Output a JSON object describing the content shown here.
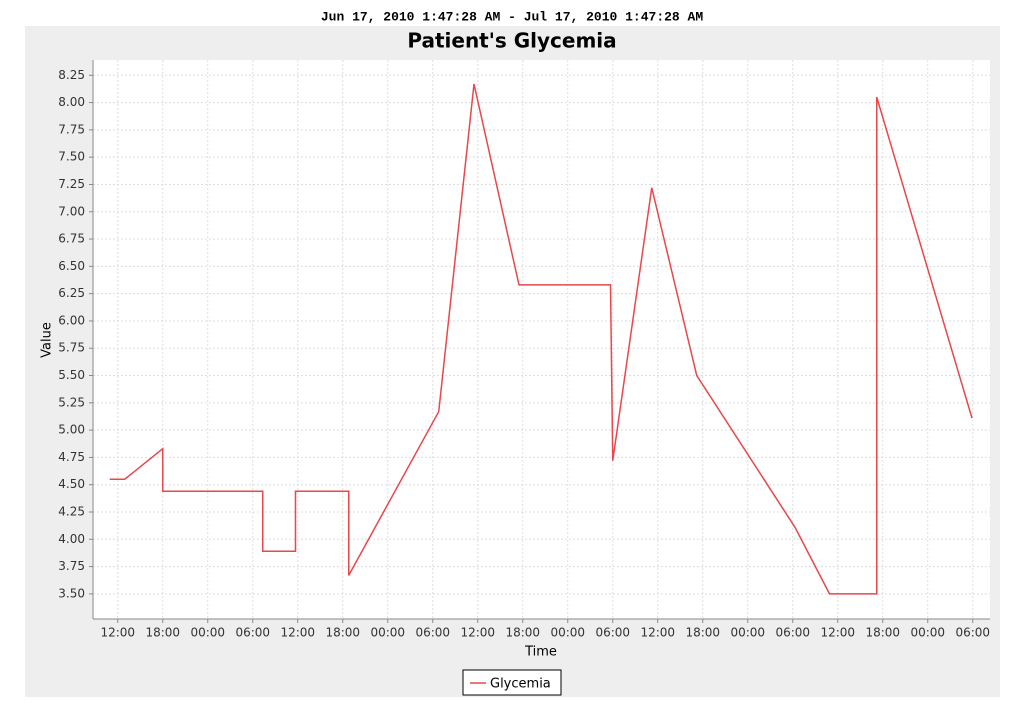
{
  "chart_data": {
    "type": "line",
    "subtitle": "Jun 17, 2010 1:47:28 AM - Jul 17, 2010 1:47:28 AM",
    "title": "Patient's Glycemia",
    "x_label": "Time",
    "y_label": "Value",
    "x": [
      -1.07,
      0.93,
      6,
      6,
      19.33,
      19.33,
      23.7,
      23.7,
      30.8,
      30.8,
      42.8,
      47.5,
      53.5,
      65.7,
      66.0,
      71.2,
      77.2,
      90.3,
      94.9,
      101.2,
      101.2,
      113.9
    ],
    "series": [
      {
        "name": "Glycemia",
        "color": "#e8474b",
        "values": [
          4.55,
          4.55,
          4.83,
          4.44,
          4.44,
          3.89,
          3.89,
          4.44,
          4.44,
          3.67,
          5.17,
          8.17,
          6.33,
          6.33,
          4.72,
          7.22,
          5.5,
          4.11,
          3.5,
          3.5,
          8.05,
          5.11
        ]
      }
    ],
    "xlim": [
      -3.3,
      116.3
    ],
    "xticks": [
      {
        "value": 0,
        "label": "12:00"
      },
      {
        "value": 6,
        "label": "18:00"
      },
      {
        "value": 12,
        "label": "00:00"
      },
      {
        "value": 18,
        "label": "06:00"
      },
      {
        "value": 24,
        "label": "12:00"
      },
      {
        "value": 30,
        "label": "18:00"
      },
      {
        "value": 36,
        "label": "00:00"
      },
      {
        "value": 42,
        "label": "06:00"
      },
      {
        "value": 48,
        "label": "12:00"
      },
      {
        "value": 54,
        "label": "18:00"
      },
      {
        "value": 60,
        "label": "00:00"
      },
      {
        "value": 66,
        "label": "06:00"
      },
      {
        "value": 72,
        "label": "12:00"
      },
      {
        "value": 78,
        "label": "18:00"
      },
      {
        "value": 84,
        "label": "00:00"
      },
      {
        "value": 90,
        "label": "06:00"
      },
      {
        "value": 96,
        "label": "12:00"
      },
      {
        "value": 102,
        "label": "18:00"
      },
      {
        "value": 108,
        "label": "00:00"
      },
      {
        "value": 114,
        "label": "06:00"
      }
    ],
    "ylim": [
      3.27,
      8.39
    ],
    "yticks": [
      {
        "value": 3.5,
        "label": "3.50"
      },
      3.75,
      {
        "value": 4,
        "label": "4.00"
      },
      4.25,
      {
        "value": 4.5,
        "label": "4.50"
      },
      4.75,
      {
        "value": 5,
        "label": "5.00"
      },
      5.25,
      {
        "value": 5.5,
        "label": "5.50"
      },
      5.75,
      {
        "value": 6,
        "label": "6.00"
      },
      6.25,
      {
        "value": 6.5,
        "label": "6.50"
      },
      6.75,
      {
        "value": 7,
        "label": "7.00"
      },
      7.25,
      {
        "value": 7.5,
        "label": "7.50"
      },
      7.75,
      {
        "value": 8,
        "label": "8.00"
      },
      8.25
    ],
    "grid": true,
    "legend": "bottom"
  }
}
